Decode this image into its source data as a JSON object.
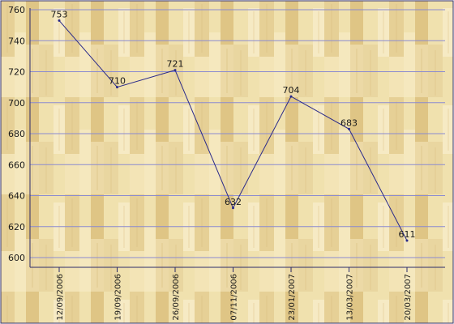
{
  "chart_data": {
    "type": "line",
    "title": "",
    "xlabel": "",
    "ylabel": "",
    "x": [
      "12/09/2006",
      "19/09/2006",
      "26/09/2006",
      "07/11/2006",
      "23/01/2007",
      "13/03/2007",
      "20/03/2007"
    ],
    "values": [
      753,
      710,
      721,
      632,
      704,
      683,
      611
    ],
    "data_labels": [
      "753",
      "710",
      "721",
      "632",
      "704",
      "683",
      "611"
    ],
    "y_ticks": [
      "600",
      "620",
      "640",
      "660",
      "680",
      "700",
      "720",
      "740",
      "760"
    ],
    "ylim": [
      600,
      760
    ],
    "grid": true,
    "legend": "none",
    "colors": {
      "line": "#2a2a8a",
      "grid": "#8a8ad0",
      "frame": "#2c2c6a",
      "background_light": "#f2e4b4",
      "background_dark": "#e0c887",
      "text": "#1a1a1a"
    }
  }
}
